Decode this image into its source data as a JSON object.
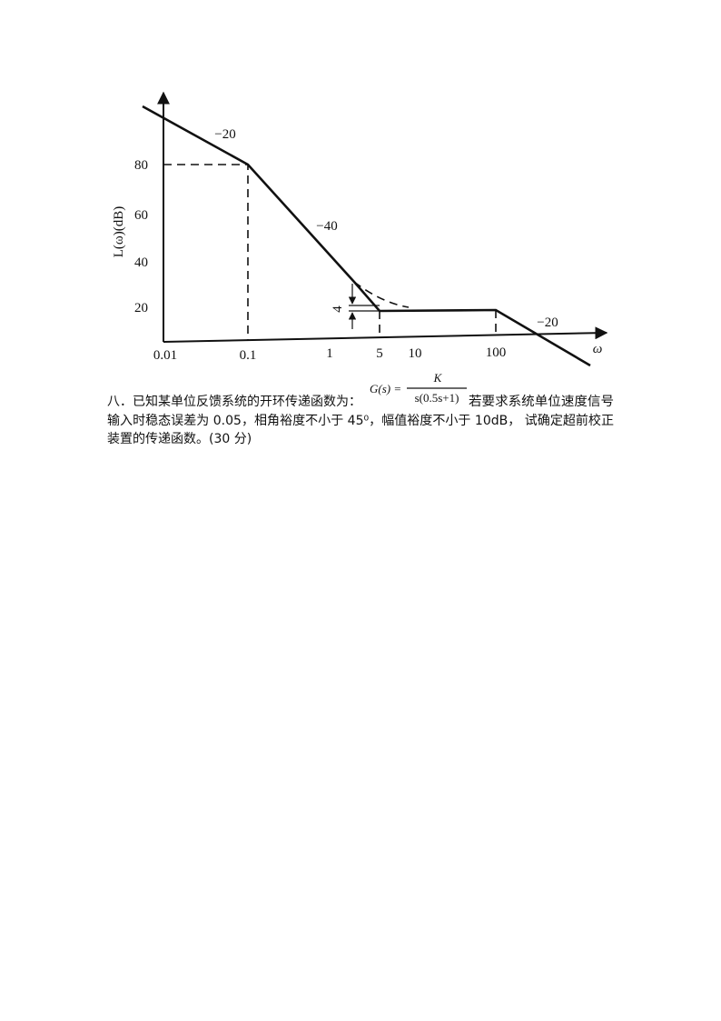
{
  "figure": {
    "y_axis_label": "L(ω)(dB)",
    "x_axis_label": "ω",
    "y_ticks": [
      "80",
      "60",
      "40",
      "20"
    ],
    "x_ticks": [
      "0.01",
      "0.1",
      "1",
      "5",
      "10",
      "100"
    ],
    "slope_labels": [
      "−20",
      "−40",
      "−20"
    ],
    "gap_label": "4"
  },
  "problem": {
    "lead": "八．已知某单位反馈系统的开环传递函数为：",
    "formula": {
      "lhs": "G(s) =",
      "numerator": "K",
      "denominator": "s(0.5s+1)"
    },
    "line1_tail": "若要求系统单位速度信号",
    "line2": "输入时稳态误差为 0.05，相角裕度不小于 45⁰，幅值裕度不小于 10dB， 试确定超前校正",
    "line3": "装置的传递函数。(30 分)"
  }
}
